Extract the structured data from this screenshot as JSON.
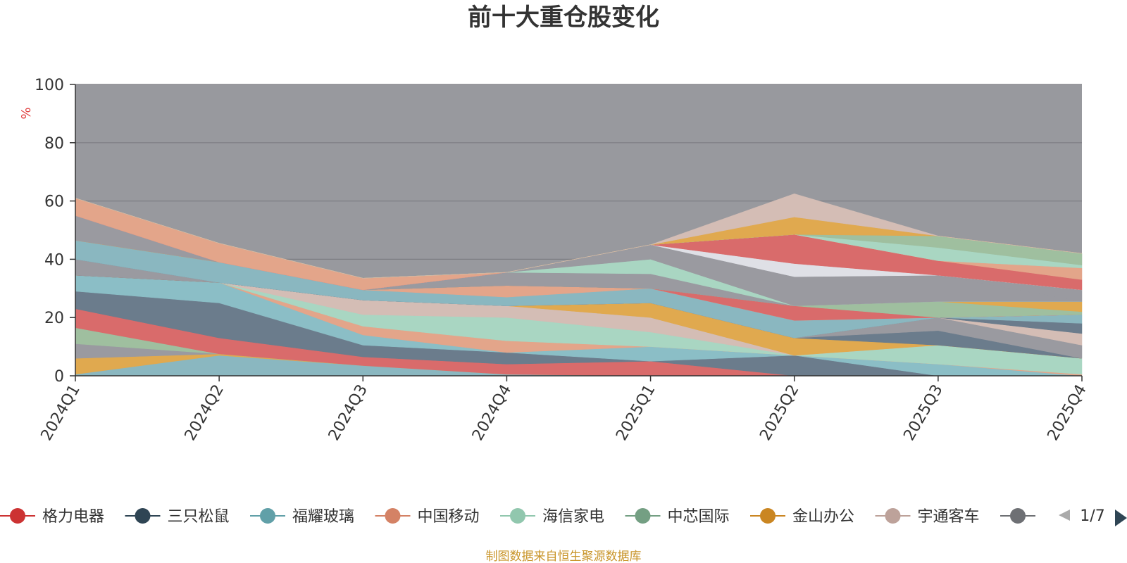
{
  "chart_data": {
    "type": "area",
    "title": "前十大重仓股变化",
    "ylabel": "%",
    "ylim": [
      0,
      100
    ],
    "yticks": [
      0,
      20,
      40,
      60,
      80,
      100
    ],
    "grid": true,
    "legend_placement": "bottom",
    "categories": [
      "2024Q1",
      "2024Q2",
      "2024Q3",
      "2024Q4",
      "2025Q1",
      "2025Q2",
      "2025Q3",
      "2025Q4"
    ],
    "series": [
      {
        "name": "福耀玻璃",
        "values": [
          0.5,
          7.0,
          3.5,
          0.5,
          0.0,
          0.0,
          0.0,
          0.0
        ],
        "color": "#8ab7c0"
      },
      {
        "name": "金山办公",
        "values": [
          5.5,
          0.5,
          0.0,
          0.0,
          0.0,
          0.0,
          0.0,
          0.0
        ],
        "color": "#e0a94f"
      },
      {
        "name": "",
        "values": [
          5.0,
          0.0,
          0.0,
          0.0,
          0.0,
          0.0,
          0.0,
          0.0
        ],
        "color": "#9a9aa0"
      },
      {
        "name": "中芯国际",
        "values": [
          5.5,
          0.0,
          0.0,
          0.0,
          0.0,
          0.0,
          0.0,
          0.0
        ],
        "color": "#9fbf9f"
      },
      {
        "name": "格力电器",
        "values": [
          6.5,
          5.5,
          3.0,
          3.5,
          5.0,
          0.0,
          0.0,
          0.0
        ],
        "color": "#d96b6b"
      },
      {
        "name": "三只松鼠",
        "values": [
          6.0,
          12.0,
          4.0,
          4.0,
          0.0,
          7.0,
          0.0,
          0.0
        ],
        "color": "#6b7c8c"
      },
      {
        "name": "福耀玻璃",
        "values": [
          5.5,
          7.0,
          3.5,
          0.0,
          5.0,
          0.0,
          4.0,
          0.0
        ],
        "color": "#8bbec6"
      },
      {
        "name": "中国移动",
        "values": [
          0.0,
          0.0,
          3.0,
          4.0,
          0.0,
          0.0,
          0.0,
          0.5
        ],
        "color": "#e3a58a"
      },
      {
        "name": "海信家电",
        "values": [
          0.0,
          0.0,
          4.0,
          8.0,
          5.0,
          0.0,
          6.5,
          5.5
        ],
        "color": "#a9d6c2"
      },
      {
        "name": "宇通客车",
        "values": [
          0.0,
          0.0,
          5.0,
          4.0,
          5.0,
          0.0,
          0.0,
          0.0
        ],
        "color": "#d4bdb5"
      },
      {
        "name": "金山办公",
        "values": [
          0.0,
          0.0,
          0.0,
          0.0,
          5.0,
          6.0,
          0.0,
          0.0
        ],
        "color": "#e0a94f"
      },
      {
        "name": "三只松鼠",
        "values": [
          0.0,
          0.0,
          0.0,
          0.0,
          0.0,
          0.0,
          5.0,
          0.0
        ],
        "color": "#6b7c8c"
      },
      {
        "name": "",
        "values": [
          5.5,
          0.0,
          0.0,
          0.0,
          0.0,
          0.0,
          4.5,
          4.5
        ],
        "color": "#9a9aa0"
      },
      {
        "name": "宇通客车",
        "values": [
          0.0,
          0.0,
          0.0,
          0.0,
          0.0,
          0.0,
          0.0,
          4.0
        ],
        "color": "#d4bdb5"
      },
      {
        "name": "三只松鼠",
        "values": [
          0.0,
          0.0,
          0.0,
          0.0,
          0.0,
          0.0,
          0.0,
          3.5
        ],
        "color": "#6b7c8c"
      },
      {
        "name": "福耀玻璃",
        "values": [
          6.5,
          7.0,
          3.5,
          3.0,
          5.0,
          6.0,
          0.0,
          3.0
        ],
        "color": "#8ab7c0"
      },
      {
        "name": "中国移动",
        "values": [
          0.0,
          0.0,
          0.0,
          4.0,
          0.0,
          0.0,
          0.0,
          0.0
        ],
        "color": "#e3a58a"
      },
      {
        "name": "格力电器",
        "values": [
          0.0,
          0.0,
          0.0,
          0.0,
          0.0,
          5.0,
          0.0,
          0.0
        ],
        "color": "#d96b6b"
      },
      {
        "name": "中芯国际",
        "values": [
          0.0,
          0.0,
          0.0,
          0.0,
          0.0,
          0.0,
          5.5,
          1.0
        ],
        "color": "#9fbf9f"
      },
      {
        "name": "金山办公",
        "values": [
          0.0,
          0.0,
          0.0,
          0.0,
          0.0,
          0.0,
          0.0,
          3.5
        ],
        "color": "#e0a94f"
      },
      {
        "name": "",
        "values": [
          8.5,
          0.0,
          0.0,
          0.0,
          0.0,
          0.0,
          0.0,
          0.0
        ],
        "color": "#9a9aa0"
      },
      {
        "name": "",
        "values": [
          0.0,
          0.0,
          0.0,
          4.5,
          5.0,
          0.0,
          0.0,
          0.0
        ],
        "color": "#9a9aa0"
      },
      {
        "name": "海信家电",
        "values": [
          0.0,
          0.0,
          0.0,
          0.0,
          5.0,
          0.0,
          0.0,
          0.0
        ],
        "color": "#a9d6c2"
      },
      {
        "name": "",
        "values": [
          0.0,
          0.0,
          0.0,
          0.0,
          5.0,
          10.0,
          9.0,
          0.0
        ],
        "color": "#9a9aa0"
      },
      {
        "name": "",
        "values": [
          0.0,
          0.0,
          0.0,
          0.0,
          0.0,
          0.0,
          0.0,
          4.0
        ],
        "color": "#9a9aa0"
      },
      {
        "name": "宇通客车",
        "values": [
          0.0,
          0.0,
          0.0,
          0.0,
          0.0,
          4.5,
          0.0,
          0.0
        ],
        "color": "#dfe0e6"
      },
      {
        "name": "格力电器",
        "values": [
          0.0,
          0.0,
          0.0,
          0.0,
          0.0,
          10.0,
          5.0,
          3.5
        ],
        "color": "#d96b6b"
      },
      {
        "name": "中国移动",
        "values": [
          6.0,
          6.5,
          4.0,
          0.0,
          0.0,
          0.0,
          0.0,
          4.0
        ],
        "color": "#e3a58a"
      },
      {
        "name": "海信家电",
        "values": [
          0.0,
          0.0,
          0.0,
          0.0,
          0.0,
          0.0,
          4.5,
          1.0
        ],
        "color": "#a9d6c2"
      },
      {
        "name": "中芯国际",
        "values": [
          0.0,
          0.0,
          0.0,
          0.0,
          0.0,
          0.0,
          4.0,
          4.0
        ],
        "color": "#9fbf9f"
      },
      {
        "name": "金山办公",
        "values": [
          0.0,
          0.0,
          0.0,
          0.0,
          0.0,
          6.0,
          0.0,
          0.0
        ],
        "color": "#e0a94f"
      },
      {
        "name": "宇通客车",
        "values": [
          0.0,
          0.0,
          0.0,
          0.0,
          0.0,
          8.0,
          0.0,
          0.0
        ],
        "color": "#d4bdb5"
      }
    ]
  },
  "legend": {
    "items": [
      {
        "name": "格力电器",
        "color": "#cc3333"
      },
      {
        "name": "三只松鼠",
        "color": "#2f4554"
      },
      {
        "name": "福耀玻璃",
        "color": "#61a0a8"
      },
      {
        "name": "中国移动",
        "color": "#d48265"
      },
      {
        "name": "海信家电",
        "color": "#91c7ae"
      },
      {
        "name": "中芯国际",
        "color": "#749f83"
      },
      {
        "name": "金山办公",
        "color": "#ca8622"
      },
      {
        "name": "宇通客车",
        "color": "#bda29a"
      },
      {
        "name": "",
        "color": "#6e7074"
      }
    ],
    "page": "1/7"
  },
  "footer": "制图数据来自恒生聚源数据库",
  "colors": {
    "plot_background": "#98999e",
    "grid": "#7d7e83",
    "axis": "#333333",
    "unit": "#e03c3c",
    "footer": "#c9952a"
  }
}
